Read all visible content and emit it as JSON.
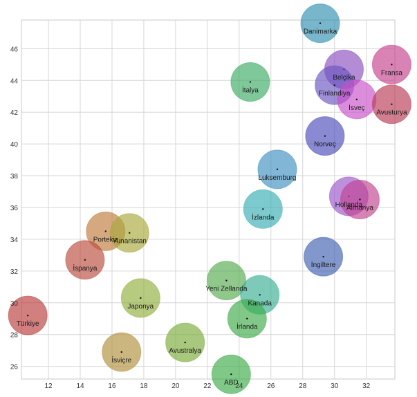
{
  "chart_data": {
    "type": "scatter",
    "title": "",
    "xlabel": "",
    "ylabel": "",
    "xlim": [
      10.3,
      33.8
    ],
    "ylim": [
      25.2,
      47.8
    ],
    "x_ticks": [
      12,
      14,
      16,
      18,
      20,
      22,
      24,
      26,
      28,
      30,
      32
    ],
    "y_ticks": [
      26,
      28,
      30,
      32,
      34,
      36,
      38,
      40,
      42,
      44,
      46
    ],
    "grid": true,
    "points": [
      {
        "label": "Danimarka",
        "x": 29.1,
        "y": 47.6,
        "color": "#2f8fb0"
      },
      {
        "label": "Belçika",
        "x": 30.6,
        "y": 44.7,
        "color": "#8a4fbf"
      },
      {
        "label": "Fransa",
        "x": 33.6,
        "y": 45.0,
        "color": "#c43f8c"
      },
      {
        "label": "İtalya",
        "x": 24.7,
        "y": 43.9,
        "color": "#3aaa62"
      },
      {
        "label": "Finlandiya",
        "x": 30.0,
        "y": 43.7,
        "color": "#6a54c2"
      },
      {
        "label": "İsveç",
        "x": 31.4,
        "y": 42.8,
        "color": "#c84fc8"
      },
      {
        "label": "Avusturya",
        "x": 33.6,
        "y": 42.5,
        "color": "#b83a55"
      },
      {
        "label": "Norveç",
        "x": 29.4,
        "y": 40.5,
        "color": "#4a4cb8"
      },
      {
        "label": "Luksemburg",
        "x": 26.4,
        "y": 38.4,
        "color": "#3d8fc0"
      },
      {
        "label": "Hollanda",
        "x": 30.9,
        "y": 36.7,
        "color": "#9a55cc"
      },
      {
        "label": "Almanya",
        "x": 31.6,
        "y": 36.5,
        "color": "#c0408f"
      },
      {
        "label": "İzlanda",
        "x": 25.5,
        "y": 35.9,
        "color": "#35adb4"
      },
      {
        "label": "Portekiz",
        "x": 15.6,
        "y": 34.5,
        "color": "#c07a3c"
      },
      {
        "label": "Yunanistan",
        "x": 17.1,
        "y": 34.4,
        "color": "#a8a83a"
      },
      {
        "label": "İngiltere",
        "x": 29.3,
        "y": 32.9,
        "color": "#3f5fb0"
      },
      {
        "label": "İspanya",
        "x": 14.3,
        "y": 32.7,
        "color": "#b84a3c"
      },
      {
        "label": "Yeni Zellanda",
        "x": 23.2,
        "y": 31.4,
        "color": "#54aa4e"
      },
      {
        "label": "Kanada",
        "x": 25.3,
        "y": 30.5,
        "color": "#38ad92"
      },
      {
        "label": "Japonya",
        "x": 17.8,
        "y": 30.3,
        "color": "#8fae3c"
      },
      {
        "label": "Türkiye",
        "x": 10.7,
        "y": 29.2,
        "color": "#b83a3a"
      },
      {
        "label": "İrlanda",
        "x": 24.5,
        "y": 29.0,
        "color": "#3eaa48"
      },
      {
        "label": "Avustralya",
        "x": 20.6,
        "y": 27.5,
        "color": "#7aaa38"
      },
      {
        "label": "İsviçre",
        "x": 16.6,
        "y": 26.9,
        "color": "#b08f3a"
      },
      {
        "label": "ABD",
        "x": 23.5,
        "y": 25.5,
        "color": "#3aaa46"
      }
    ]
  }
}
